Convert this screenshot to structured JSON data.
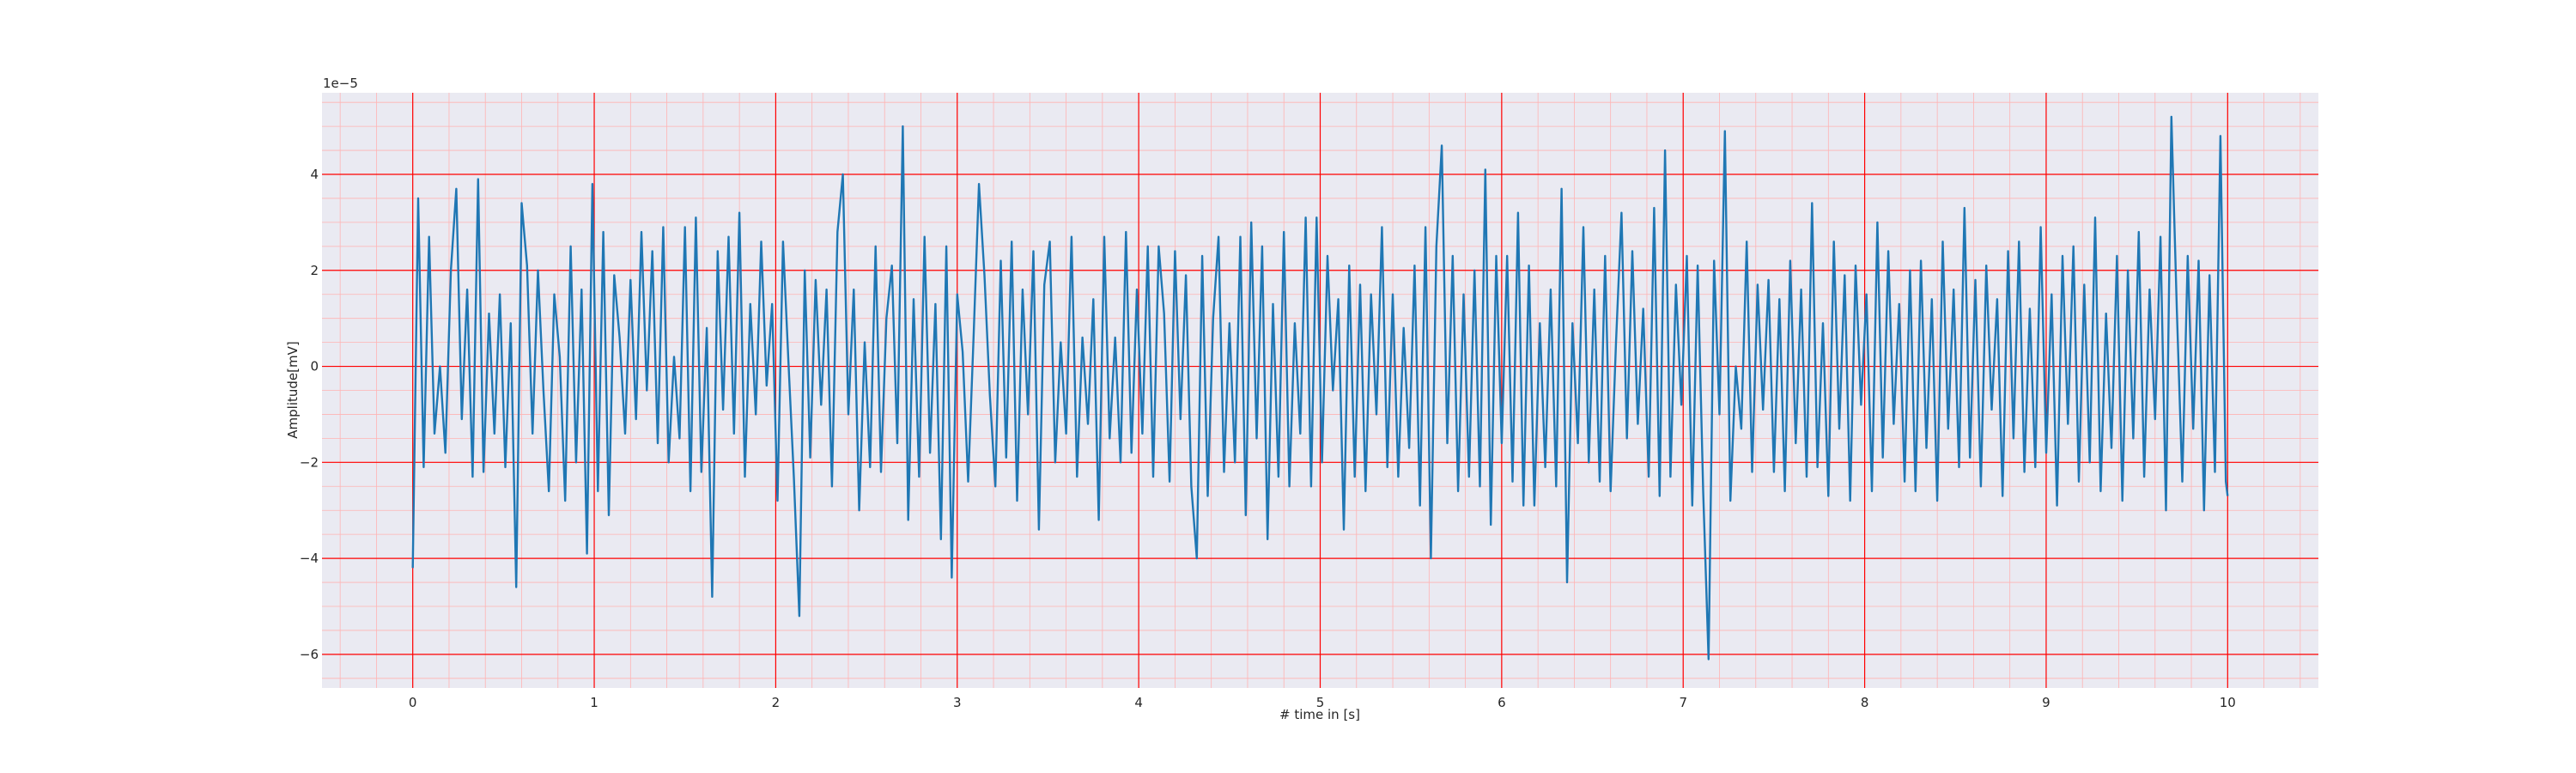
{
  "chart_data": {
    "type": "line",
    "title": "",
    "xlabel": "# time in [s]",
    "ylabel": "Amplitude[mV]",
    "y_offset_text": "1e−5",
    "y_multiplier": 1e-05,
    "xlim": [
      -0.5,
      10.5
    ],
    "ylim": [
      -6.7,
      5.7
    ],
    "x_ticks": [
      0,
      1,
      2,
      3,
      4,
      5,
      6,
      7,
      8,
      9,
      10
    ],
    "x_tick_labels": [
      "0",
      "1",
      "2",
      "3",
      "4",
      "5",
      "6",
      "7",
      "8",
      "9",
      "10"
    ],
    "y_ticks": [
      -6,
      -4,
      -2,
      0,
      2,
      4
    ],
    "y_tick_labels": [
      "−6",
      "−4",
      "−2",
      "0",
      "2",
      "4"
    ],
    "grid": "major and minor",
    "legend": "none",
    "colors": {
      "line": "#1f77b4",
      "plot_background": "#eaeaf2",
      "major_grid": "#ff0000",
      "minor_grid": "#ffb3b3"
    },
    "series": [
      {
        "x": [
          0,
          0.03,
          0.06,
          0.09,
          0.12,
          0.15,
          0.18,
          0.21,
          0.24,
          0.27,
          0.3,
          0.33,
          0.36,
          0.39,
          0.42,
          0.45,
          0.48,
          0.51,
          0.54,
          0.57,
          0.6,
          0.63,
          0.66,
          0.69,
          0.72,
          0.75,
          0.78,
          0.81,
          0.84,
          0.87,
          0.9,
          0.93,
          0.96,
          0.99,
          1.02,
          1.05,
          1.08,
          1.11,
          1.14,
          1.17,
          1.2,
          1.23,
          1.26,
          1.29,
          1.32,
          1.35,
          1.38,
          1.41,
          1.44,
          1.47,
          1.5,
          1.53,
          1.56,
          1.59,
          1.62,
          1.65,
          1.68,
          1.71,
          1.74,
          1.77,
          1.8,
          1.83,
          1.86,
          1.89,
          1.92,
          1.95,
          1.98,
          2.01,
          2.04,
          2.07,
          2.1,
          2.13,
          2.16,
          2.19,
          2.22,
          2.25,
          2.28,
          2.31,
          2.34,
          2.37,
          2.4,
          2.43,
          2.46,
          2.49,
          2.52,
          2.55,
          2.58,
          2.61,
          2.64,
          2.67,
          2.7,
          2.73,
          2.76,
          2.79,
          2.82,
          2.85,
          2.88,
          2.91,
          2.94,
          2.97,
          3.0,
          3.03,
          3.06,
          3.09,
          3.12,
          3.15,
          3.18,
          3.21,
          3.24,
          3.27,
          3.3,
          3.33,
          3.36,
          3.39,
          3.42,
          3.45,
          3.48,
          3.51,
          3.54,
          3.57,
          3.6,
          3.63,
          3.66,
          3.69,
          3.72,
          3.75,
          3.78,
          3.81,
          3.84,
          3.87,
          3.9,
          3.93,
          3.96,
          3.99,
          4.02,
          4.05,
          4.08,
          4.11,
          4.14,
          4.17,
          4.2,
          4.23,
          4.26,
          4.29,
          4.32,
          4.35,
          4.38,
          4.41,
          4.44,
          4.47,
          4.5,
          4.53,
          4.56,
          4.59,
          4.62,
          4.65,
          4.68,
          4.71,
          4.74,
          4.77,
          4.8,
          4.83,
          4.86,
          4.89,
          4.92,
          4.95,
          4.98,
          5.01,
          5.04,
          5.07,
          5.1,
          5.13,
          5.16,
          5.19,
          5.22,
          5.25,
          5.28,
          5.31,
          5.34,
          5.37,
          5.4,
          5.43,
          5.46,
          5.49,
          5.52,
          5.55,
          5.58,
          5.61,
          5.64,
          5.67,
          5.7,
          5.73,
          5.76,
          5.79,
          5.82,
          5.85,
          5.88,
          5.91,
          5.94,
          5.97,
          6.0,
          6.03,
          6.06,
          6.09,
          6.12,
          6.15,
          6.18,
          6.21,
          6.24,
          6.27,
          6.3,
          6.33,
          6.36,
          6.39,
          6.42,
          6.45,
          6.48,
          6.51,
          6.54,
          6.57,
          6.6,
          6.63,
          6.66,
          6.69,
          6.72,
          6.75,
          6.78,
          6.81,
          6.84,
          6.87,
          6.9,
          6.93,
          6.96,
          6.99,
          7.02,
          7.05,
          7.08,
          7.11,
          7.14,
          7.17,
          7.2,
          7.23,
          7.26,
          7.29,
          7.32,
          7.35,
          7.38,
          7.41,
          7.44,
          7.47,
          7.5,
          7.53,
          7.56,
          7.59,
          7.62,
          7.65,
          7.68,
          7.71,
          7.74,
          7.77,
          7.8,
          7.83,
          7.86,
          7.89,
          7.92,
          7.95,
          7.98,
          8.01,
          8.04,
          8.07,
          8.1,
          8.13,
          8.16,
          8.19,
          8.22,
          8.25,
          8.28,
          8.31,
          8.34,
          8.37,
          8.4,
          8.43,
          8.46,
          8.49,
          8.52,
          8.55,
          8.58,
          8.61,
          8.64,
          8.67,
          8.7,
          8.73,
          8.76,
          8.79,
          8.82,
          8.85,
          8.88,
          8.91,
          8.94,
          8.97,
          9.0,
          9.03,
          9.06,
          9.09,
          9.12,
          9.15,
          9.18,
          9.21,
          9.24,
          9.27,
          9.3,
          9.33,
          9.36,
          9.39,
          9.42,
          9.45,
          9.48,
          9.51,
          9.54,
          9.57,
          9.6,
          9.63,
          9.66,
          9.69,
          9.72,
          9.75,
          9.78,
          9.81,
          9.84,
          9.87,
          9.9,
          9.93,
          9.96,
          9.99,
          10.0
        ],
        "y": [
          -4.2,
          3.5,
          -2.1,
          2.7,
          -1.4,
          0.0,
          -1.8,
          2.0,
          3.7,
          -1.1,
          1.6,
          -2.3,
          3.9,
          -2.2,
          1.1,
          -1.4,
          1.5,
          -2.1,
          0.9,
          -4.6,
          3.4,
          2.1,
          -1.4,
          2.0,
          -0.5,
          -2.6,
          1.5,
          0.2,
          -2.8,
          2.5,
          -2.0,
          1.6,
          -3.9,
          3.8,
          -2.6,
          2.8,
          -3.1,
          1.9,
          0.6,
          -1.4,
          1.8,
          -1.1,
          2.8,
          -0.5,
          2.4,
          -1.6,
          2.9,
          -2.0,
          0.2,
          -1.5,
          2.9,
          -2.6,
          3.1,
          -2.2,
          0.8,
          -4.8,
          2.4,
          -0.9,
          2.7,
          -1.4,
          3.2,
          -2.3,
          1.3,
          -1.0,
          2.6,
          -0.4,
          1.3,
          -2.8,
          2.6,
          0.1,
          -2.3,
          -5.2,
          2.0,
          -1.9,
          1.8,
          -0.8,
          1.6,
          -2.5,
          2.8,
          4.0,
          -1.0,
          1.6,
          -3.0,
          0.5,
          -2.1,
          2.5,
          -2.2,
          1.0,
          2.1,
          -1.6,
          5.0,
          -3.2,
          1.4,
          -2.3,
          2.7,
          -1.8,
          1.3,
          -3.6,
          2.5,
          -4.4,
          1.5,
          0.3,
          -2.4,
          0.6,
          3.8,
          1.9,
          -0.6,
          -2.5,
          2.2,
          -1.9,
          2.6,
          -2.8,
          1.6,
          -1.0,
          2.4,
          -3.4,
          1.7,
          2.6,
          -2.0,
          0.5,
          -1.4,
          2.7,
          -2.3,
          0.6,
          -1.2,
          1.4,
          -3.2,
          2.7,
          -1.5,
          0.6,
          -2.0,
          2.8,
          -1.8,
          1.6,
          -1.4,
          2.5,
          -2.3,
          2.5,
          1.1,
          -2.4,
          2.4,
          -1.1,
          1.9,
          -2.5,
          -4.0,
          2.3,
          -2.7,
          1.0,
          2.7,
          -2.2,
          0.9,
          -2.0,
          2.7,
          -3.1,
          3.0,
          -1.5,
          2.5,
          -3.6,
          1.3,
          -2.3,
          2.8,
          -2.5,
          0.9,
          -1.4,
          3.1,
          -2.5,
          3.1,
          -2.0,
          2.3,
          -0.5,
          1.4,
          -3.4,
          2.1,
          -2.3,
          1.7,
          -2.6,
          1.5,
          -1.0,
          2.9,
          -2.1,
          1.5,
          -2.3,
          0.8,
          -1.7,
          2.1,
          -2.9,
          2.9,
          -4.0,
          2.5,
          4.6,
          -1.6,
          2.3,
          -2.6,
          1.5,
          -2.3,
          2.0,
          -2.5,
          4.1,
          -3.3,
          2.3,
          -1.6,
          2.3,
          -2.4,
          3.2,
          -2.9,
          2.1,
          -2.9,
          0.9,
          -2.1,
          1.6,
          -2.5,
          3.7,
          -4.5,
          0.9,
          -1.6,
          2.9,
          -2.0,
          1.6,
          -2.4,
          2.3,
          -2.6,
          0.5,
          3.2,
          -1.5,
          2.4,
          -1.2,
          1.2,
          -2.3,
          3.3,
          -2.7,
          4.5,
          -2.3,
          1.7,
          -0.8,
          2.3,
          -2.9,
          2.1,
          -2.6,
          -6.1,
          2.2,
          -1.0,
          4.9,
          -2.8,
          0.0,
          -1.3,
          2.6,
          -2.2,
          1.7,
          -0.9,
          1.8,
          -2.2,
          1.4,
          -2.6,
          2.2,
          -1.6,
          1.6,
          -2.3,
          3.4,
          -2.1,
          0.9,
          -2.7,
          2.6,
          -1.3,
          1.9,
          -2.8,
          2.1,
          -0.8,
          1.5,
          -2.6,
          3.0,
          -1.9,
          2.4,
          -1.2,
          1.3,
          -2.4,
          2.0,
          -2.6,
          2.2,
          -1.7,
          1.4,
          -2.8,
          2.6,
          -1.3,
          1.6,
          -2.1,
          3.3,
          -1.9,
          1.8,
          -2.5,
          2.1,
          -0.9,
          1.4,
          -2.7,
          2.4,
          -1.5,
          2.6,
          -2.2,
          1.2,
          -2.1,
          2.9,
          -1.8,
          1.5,
          -2.9,
          2.3,
          -1.2,
          2.5,
          -2.4,
          1.7,
          -2.0,
          3.1,
          -2.6,
          1.1,
          -1.7,
          2.3,
          -2.8,
          2.0,
          -1.5,
          2.8,
          -2.3,
          1.6,
          -1.1,
          2.7,
          -3.0,
          5.2,
          1.2,
          -2.4,
          2.3,
          -1.3,
          2.2,
          -3.0,
          1.9,
          -2.2,
          4.8,
          -2.4,
          -2.7
        ]
      }
    ]
  }
}
